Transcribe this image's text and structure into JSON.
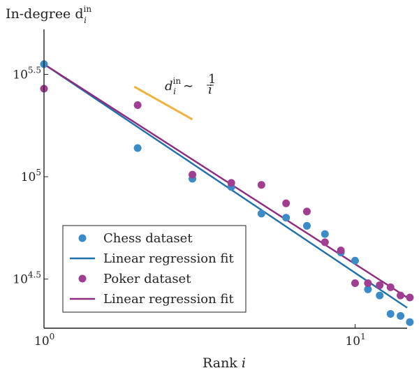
{
  "chart_data": {
    "type": "scatter",
    "ylabel_base": "In-degree d",
    "ylabel_sub": "i",
    "ylabel_sup": "in",
    "xlabel_base": "Rank ",
    "xlabel_var": "i",
    "xscale": "log",
    "yscale": "log",
    "xlim": [
      1,
      14.7
    ],
    "ylim_log10": [
      4.26,
      5.72
    ],
    "x_ticks": [
      {
        "value": 1,
        "base": "10",
        "exp": "0"
      },
      {
        "value": 10,
        "base": "10",
        "exp": "1"
      }
    ],
    "y_ticks": [
      {
        "log10": 5.5,
        "base": "10",
        "exp": "5.5"
      },
      {
        "log10": 5.0,
        "base": "10",
        "exp": "5"
      },
      {
        "log10": 4.5,
        "base": "10",
        "exp": "4.5"
      }
    ],
    "annotation": {
      "d": "d",
      "sub": "i",
      "sup": "in",
      "sim": "∼",
      "num": "1",
      "den": "i",
      "segment_log": {
        "x": [
          1.95,
          3.0
        ],
        "y_log10": [
          5.44,
          5.28
        ]
      },
      "color": "#f0b23c"
    },
    "series": [
      {
        "name": "Chess dataset",
        "kind": "scatter",
        "color": "#3a8bc8",
        "x": [
          1,
          2,
          3,
          4,
          5,
          6,
          7,
          8,
          9,
          10,
          11,
          12,
          13,
          14,
          15
        ],
        "y_log10": [
          5.55,
          5.14,
          4.99,
          4.95,
          4.82,
          4.8,
          4.76,
          4.72,
          4.63,
          4.59,
          4.45,
          4.42,
          4.33,
          4.32,
          4.29
        ]
      },
      {
        "name": "Linear regression fit",
        "kind": "line",
        "color": "#1f6fa8",
        "x": [
          1,
          14.7
        ],
        "y_log10": [
          5.55,
          4.36
        ]
      },
      {
        "name": "Poker dataset",
        "kind": "scatter",
        "color": "#a03f92",
        "x": [
          1,
          2,
          3,
          4,
          5,
          6,
          7,
          8,
          9,
          10,
          11,
          12,
          13,
          14,
          15
        ],
        "y_log10": [
          5.43,
          5.35,
          5.01,
          4.97,
          4.96,
          4.87,
          4.83,
          4.68,
          4.64,
          4.48,
          4.48,
          4.47,
          4.46,
          4.42,
          4.41
        ]
      },
      {
        "name": "Linear regression fit",
        "kind": "line",
        "color": "#8e2a80",
        "x": [
          1,
          14.7
        ],
        "y_log10": [
          5.55,
          4.41
        ]
      }
    ],
    "legend": {
      "placement": "bottom-left",
      "entries": [
        {
          "marker": "dot",
          "color": "#3a8bc8",
          "label": "Chess dataset"
        },
        {
          "marker": "line",
          "color": "#1f6fa8",
          "label": "Linear regression fit"
        },
        {
          "marker": "dot",
          "color": "#a03f92",
          "label": "Poker dataset"
        },
        {
          "marker": "line",
          "color": "#8e2a80",
          "label": "Linear regression fit"
        }
      ]
    },
    "colors": {
      "axis": "#222222"
    }
  }
}
